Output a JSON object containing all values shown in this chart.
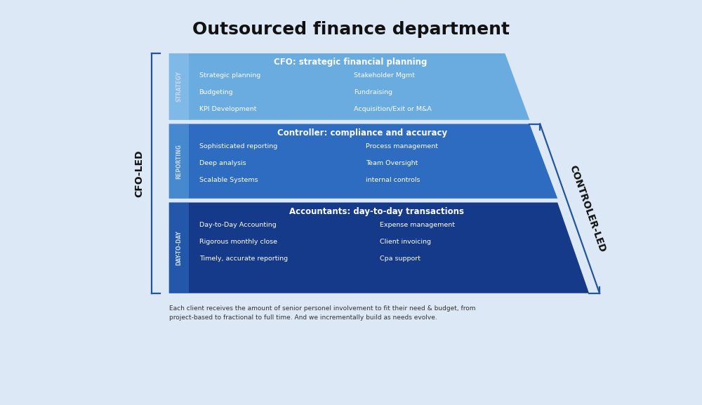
{
  "title": "Outsourced finance department",
  "background_color": "#dce8f5",
  "title_fontsize": 18,
  "title_fontweight": "bold",
  "footer_text": "Each client receives the amount of senior personel involvement to fit their need & budget, from\nproject-based to fractional to full time. And we incrementally build as needs evolve.",
  "layers": [
    {
      "title": "CFO: strategic financial planning",
      "side_label": "STRATEGY",
      "color": "#6aabe0",
      "text_color": "#ffffff",
      "side_label_color": "#8ec4ec",
      "items_left": [
        "Strategic planning",
        "Budgeting",
        "KPI Development"
      ],
      "items_right": [
        "Stakeholder Mgmt",
        "Fundraising",
        "Acquisition/Exit or M&A"
      ]
    },
    {
      "title": "Controller: compliance and accuracy",
      "side_label": "REPORTING",
      "color": "#2d6cc0",
      "text_color": "#ffffff",
      "side_label_color": "#5a9dd8",
      "items_left": [
        "Sophisticated reporting",
        "Deep analysis",
        "Scalable Systems"
      ],
      "items_right": [
        "Process management",
        "Team Oversight",
        "internal controls"
      ]
    },
    {
      "title": "Accountants: day-to-day transactions",
      "side_label": "DAY-TO-DAY",
      "color": "#163a8a",
      "text_color": "#ffffff",
      "side_label_color": "#2d6cc0",
      "items_left": [
        "Day-to-Day Accounting",
        "Rigorous monthly close",
        "Timely, accurate reporting"
      ],
      "items_right": [
        "Expense management",
        "Client invoicing",
        "Cpa support"
      ]
    }
  ],
  "left_bracket_label": "CFO-LED",
  "right_bracket_label": "CONTROLER-LED",
  "bracket_color": "#2255a0"
}
